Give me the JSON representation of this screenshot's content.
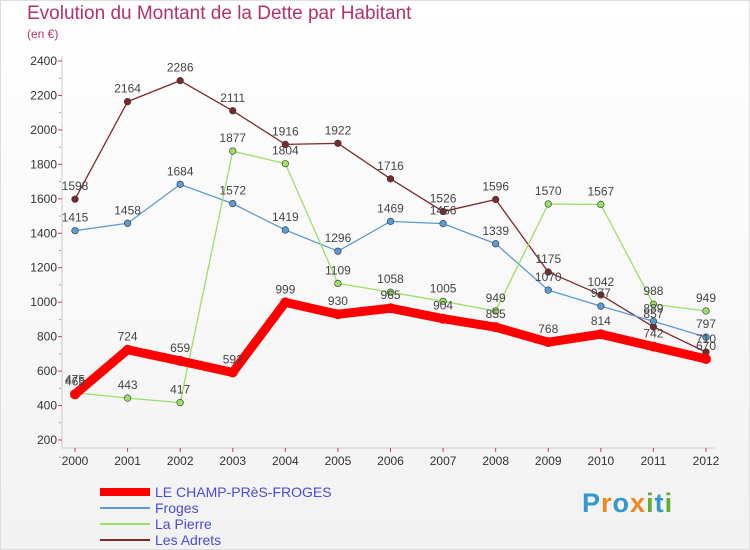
{
  "header": {
    "title": "Evolution du Montant de la Dette par Habitant",
    "subtitle": "(en €)"
  },
  "logo": {
    "letters": [
      "P",
      "r",
      "o",
      "x",
      "i",
      "t",
      "i"
    ],
    "colors": [
      "#3399cc",
      "#ee8822",
      "#3399cc",
      "#ee8822",
      "#66aa33",
      "#3399cc",
      "#66aa33"
    ]
  },
  "chart_data": {
    "type": "line",
    "title": "Evolution du Montant de la Dette par Habitant",
    "subtitle": "(en €)",
    "x": [
      "2000",
      "2001",
      "2002",
      "2003",
      "2004",
      "2005",
      "2006",
      "2007",
      "2008",
      "2009",
      "2010",
      "2011",
      "2012"
    ],
    "ylim": [
      200,
      2400
    ],
    "yticks": [
      200,
      400,
      600,
      800,
      1000,
      1200,
      1400,
      1600,
      1800,
      2000,
      2200,
      2400
    ],
    "grid": false,
    "legend_position": "bottom-left",
    "series": [
      {
        "name": "LE CHAMP-PRèS-FROGES",
        "color": "#ff0000",
        "values": [
          465,
          724,
          659,
          592,
          999,
          930,
          965,
          904,
          855,
          768,
          814,
          742,
          670
        ]
      },
      {
        "name": "Froges",
        "color": "#5b9bd5",
        "values": [
          1415,
          1458,
          1684,
          1572,
          1419,
          1296,
          1469,
          1456,
          1339,
          1070,
          977,
          889,
          797
        ]
      },
      {
        "name": "La Pierre",
        "color": "#99e065",
        "values": [
          475,
          443,
          417,
          1877,
          1804,
          1109,
          1058,
          1005,
          949,
          1570,
          1567,
          988,
          949
        ]
      },
      {
        "name": "Les Adrets",
        "color": "#7a2a2a",
        "values": [
          1598,
          2164,
          2286,
          2111,
          1916,
          1922,
          1716,
          1526,
          1596,
          1175,
          1042,
          857,
          710
        ]
      }
    ]
  }
}
